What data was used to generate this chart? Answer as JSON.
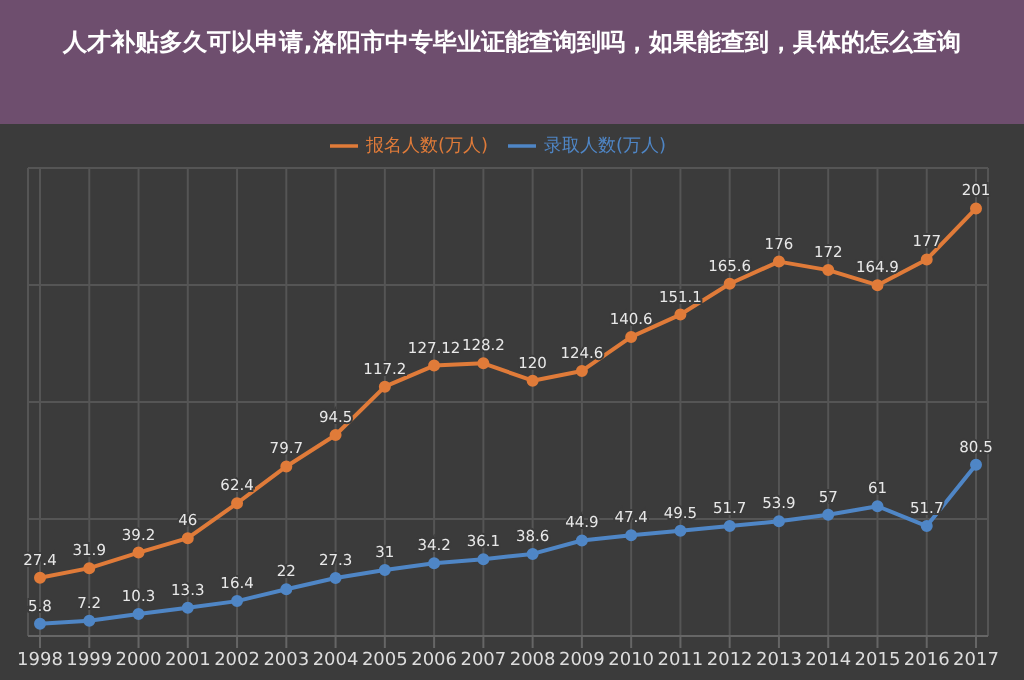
{
  "chart_data": {
    "type": "line",
    "title": "人才补贴多久可以申请,洛阳市中专毕业证能查询到吗，如果能查到，具体的怎么查询",
    "categories": [
      "1998",
      "1999",
      "2000",
      "2001",
      "2002",
      "2003",
      "2004",
      "2005",
      "2006",
      "2007",
      "2008",
      "2009",
      "2010",
      "2011",
      "2012",
      "2013",
      "2014",
      "2015",
      "2016",
      "2017"
    ],
    "series": [
      {
        "name": "报名人数(万人)",
        "color": "#e07b39",
        "values": [
          27.4,
          31.9,
          39.2,
          46,
          62.4,
          79.7,
          94.5,
          117.2,
          127.12,
          128.2,
          120,
          124.6,
          140.6,
          151.1,
          165.6,
          176,
          172,
          164.9,
          177,
          201
        ]
      },
      {
        "name": "录取人数(万人)",
        "color": "#4f86c6",
        "values": [
          5.8,
          7.2,
          10.3,
          13.3,
          16.4,
          22,
          27.3,
          31,
          34.2,
          36.1,
          38.6,
          44.9,
          47.4,
          49.5,
          51.7,
          53.9,
          57,
          61,
          51.7,
          80.5
        ]
      }
    ],
    "data_labels": true,
    "grid": true,
    "legend": "top",
    "marker": "circle",
    "line_style": "solid"
  }
}
